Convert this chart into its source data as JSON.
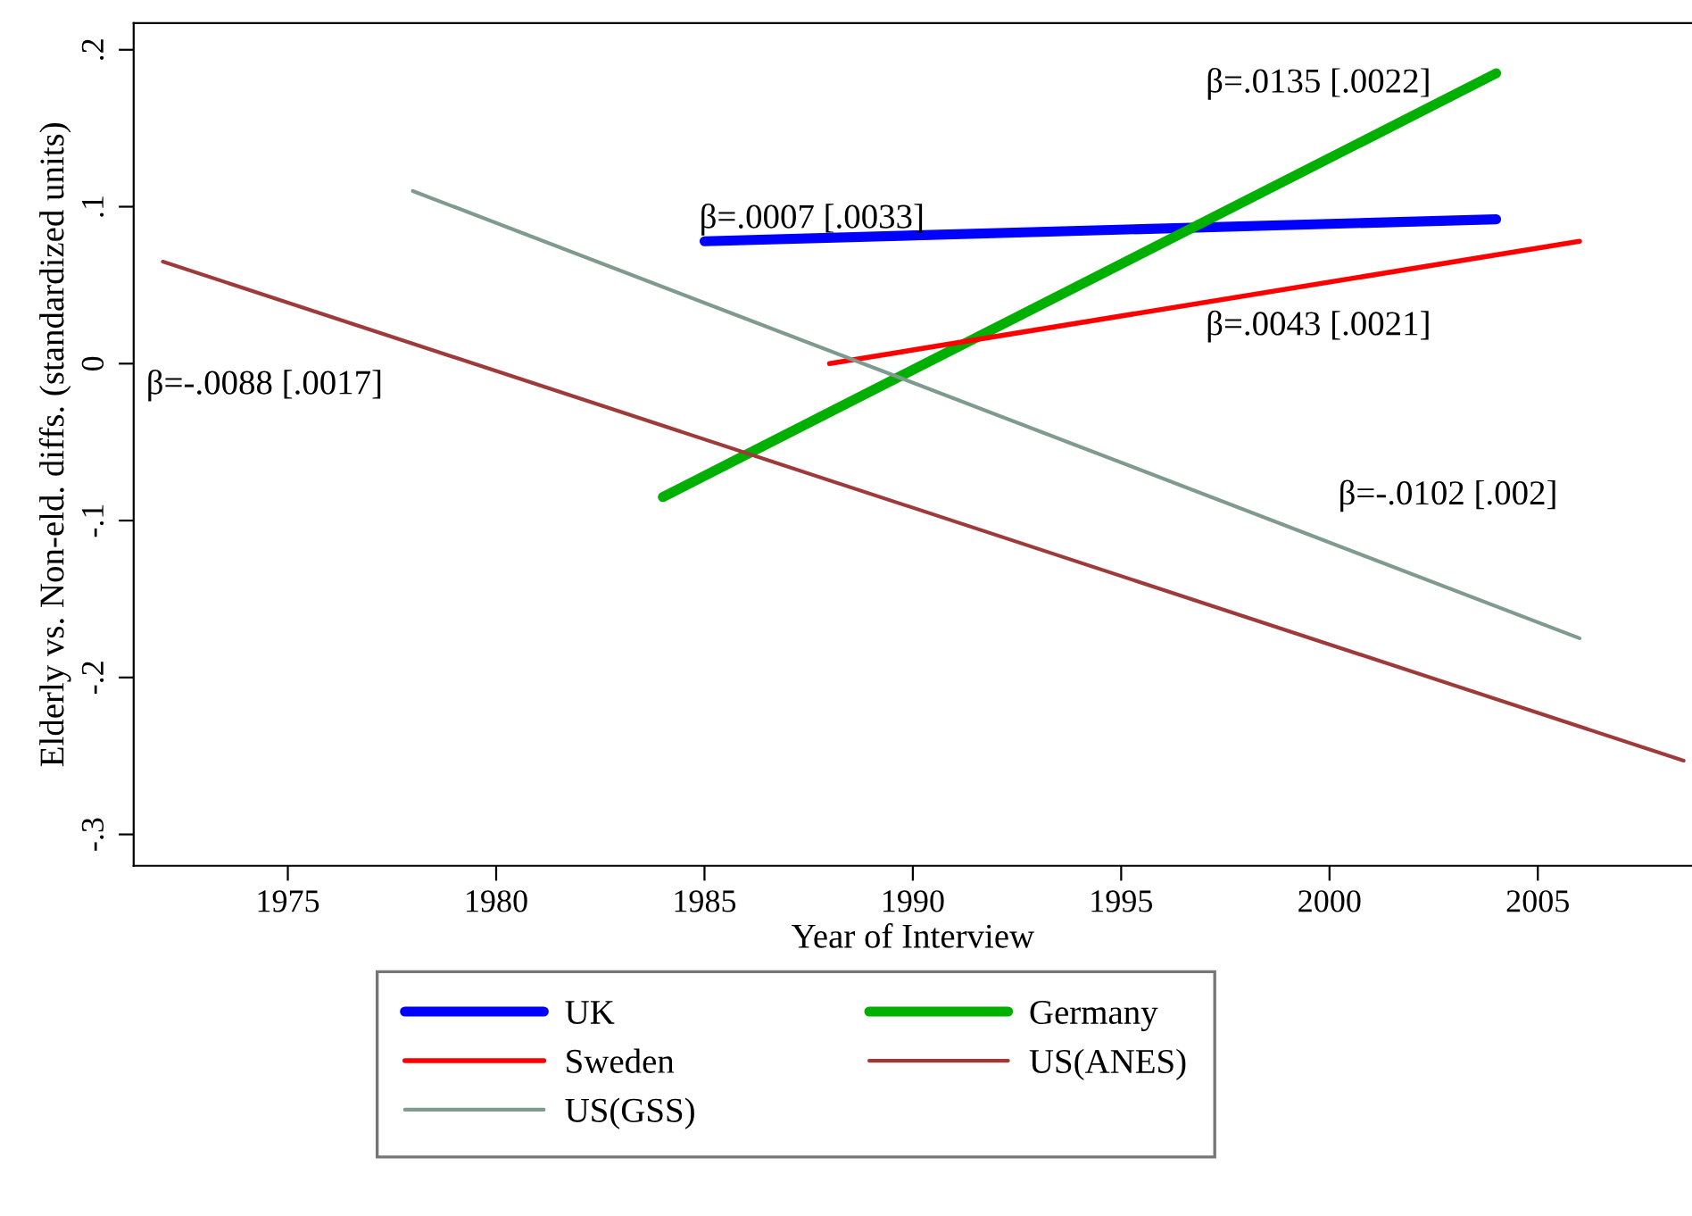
{
  "chart_data": {
    "type": "line",
    "xlabel": "Year of Interview",
    "ylabel": "Elderly vs. Non-eld. diffs. (standardized units)",
    "xlim": [
      1971.3,
      2008.7
    ],
    "xticks": [
      1975,
      1980,
      1985,
      1990,
      1995,
      2000,
      2005
    ],
    "ylim": [
      -0.32,
      0.217
    ],
    "yticks": [
      {
        "value": 0.2,
        "label": ".2"
      },
      {
        "value": 0.1,
        "label": ".1"
      },
      0,
      {
        "value": -0.1,
        "label": "-.1"
      },
      {
        "value": -0.2,
        "label": "-.2"
      },
      {
        "value": -0.3,
        "label": "-.3"
      }
    ],
    "series": [
      {
        "name": "UK",
        "color": "#0000ff",
        "x": [
          1985,
          2004
        ],
        "values": [
          0.078,
          0.092
        ]
      },
      {
        "name": "Germany",
        "color": "#00b000",
        "x": [
          1984,
          2004
        ],
        "values": [
          -0.085,
          0.185
        ]
      },
      {
        "name": "Sweden",
        "color": "#ff0000",
        "x": [
          1988,
          2006
        ],
        "values": [
          0.0,
          0.078
        ]
      },
      {
        "name": "US(ANES)",
        "color": "#9e3a3a",
        "x": [
          1972,
          2008.5
        ],
        "values": [
          0.065,
          -0.253
        ]
      },
      {
        "name": "US(GSS)",
        "color": "#7f9a8f",
        "x": [
          1978,
          2006
        ],
        "values": [
          0.11,
          -0.175
        ]
      }
    ],
    "annotations": [
      "β=.0007 [.0033]",
      "β=.0135 [.0022]",
      "β=.0043 [.0021]",
      "β=-.0088 [.0017]",
      "β=-.0102 [.002]"
    ],
    "legend": "bottom",
    "grid": false,
    "line_style": "solid",
    "marker": "none"
  }
}
